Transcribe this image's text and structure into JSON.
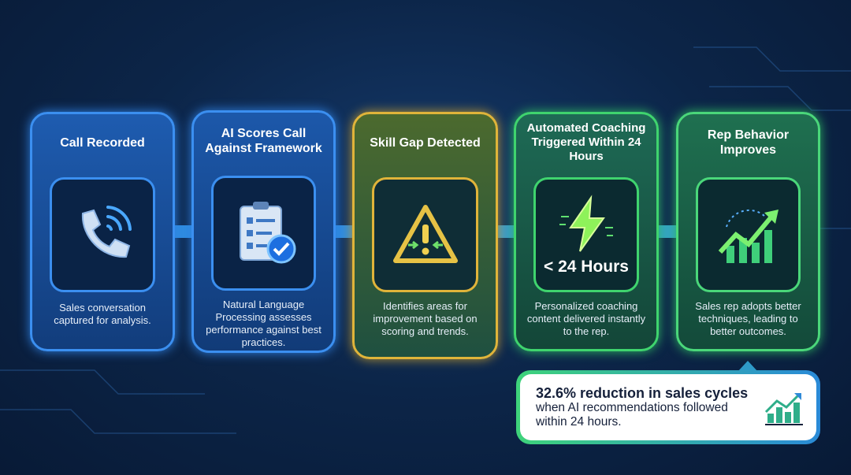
{
  "steps": [
    {
      "title": "Call Recorded",
      "description": "Sales conversation captured for analysis.",
      "icon": "phone-icon"
    },
    {
      "title": "AI Scores Call Against Framework",
      "description": "Natural Language Processing assesses performance against best practices.",
      "icon": "clipboard-check-icon"
    },
    {
      "title": "Skill Gap Detected",
      "description": "Identifies areas for improvement based on scoring and trends.",
      "icon": "warning-icon"
    },
    {
      "title": "Automated Coaching Triggered Within 24 Hours",
      "description": "Personalized coaching content delivered instantly to the rep.",
      "icon": "lightning-icon",
      "badge": "< 24 Hours"
    },
    {
      "title": "Rep Behavior Improves",
      "description": "Sales rep adopts better techniques, leading to better outcomes.",
      "icon": "growth-chart-icon"
    }
  ],
  "callout": {
    "headline": "32.6% reduction in sales cycles",
    "text": "when AI recommendations followed within 24 hours.",
    "icon": "bar-chart-up-icon"
  },
  "colors": {
    "blue": "#3b8ff0",
    "gold": "#e0b43a",
    "green": "#3fd46e",
    "background": "#0c2548"
  }
}
